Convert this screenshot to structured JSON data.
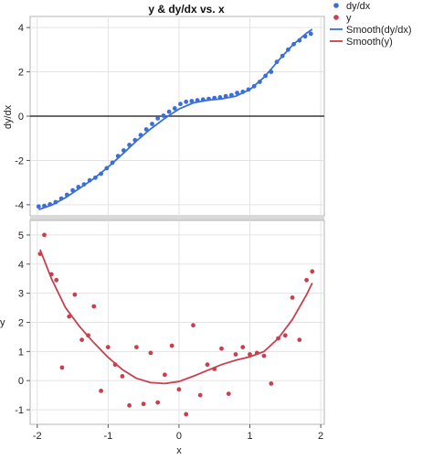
{
  "colors": {
    "dydx": "#3a6fd8",
    "y": "#c8404e",
    "smooth_dydx": "#3a6fd8",
    "smooth_y": "#c8404e",
    "grid": "#e3e3e3",
    "divider": "#d9d9d9"
  },
  "chart_data": [
    {
      "type": "scatter",
      "title": "y & dy/dx vs. x",
      "xlabel": "",
      "ylabel": "dy/dx",
      "xlim": [
        -2.1,
        2.05
      ],
      "ylim": [
        -4.5,
        4.5
      ],
      "yticks": [
        -4,
        -2,
        0,
        2,
        4
      ],
      "grid": true,
      "reference_line_y": 0,
      "series": [
        {
          "name": "dy/dx",
          "mode": "markers",
          "x": [
            -1.98,
            -1.9,
            -1.82,
            -1.74,
            -1.66,
            -1.58,
            -1.5,
            -1.42,
            -1.34,
            -1.26,
            -1.18,
            -1.1,
            -1.02,
            -0.94,
            -0.86,
            -0.78,
            -0.7,
            -0.62,
            -0.54,
            -0.46,
            -0.38,
            -0.3,
            -0.22,
            -0.14,
            -0.06,
            0.02,
            0.1,
            0.18,
            0.26,
            0.34,
            0.42,
            0.5,
            0.58,
            0.66,
            0.74,
            0.82,
            0.9,
            0.98,
            1.06,
            1.14,
            1.22,
            1.3,
            1.38,
            1.46,
            1.54,
            1.62,
            1.7,
            1.78,
            1.86
          ],
          "y": [
            -4.08,
            -4.05,
            -3.98,
            -3.88,
            -3.72,
            -3.55,
            -3.35,
            -3.2,
            -3.08,
            -2.9,
            -2.78,
            -2.6,
            -2.35,
            -2.1,
            -1.8,
            -1.55,
            -1.3,
            -1.08,
            -0.85,
            -0.6,
            -0.35,
            -0.1,
            0.02,
            0.2,
            0.35,
            0.55,
            0.65,
            0.68,
            0.72,
            0.75,
            0.78,
            0.82,
            0.85,
            0.9,
            0.95,
            1.05,
            1.1,
            1.2,
            1.35,
            1.55,
            1.82,
            2.0,
            2.45,
            2.72,
            3.0,
            3.25,
            3.42,
            3.6,
            3.72
          ]
        },
        {
          "name": "Smooth(dy/dx)",
          "mode": "line",
          "x": [
            -1.98,
            -1.8,
            -1.6,
            -1.4,
            -1.2,
            -1.0,
            -0.8,
            -0.6,
            -0.4,
            -0.2,
            0.0,
            0.2,
            0.4,
            0.6,
            0.8,
            1.0,
            1.2,
            1.4,
            1.6,
            1.8,
            1.88
          ],
          "y": [
            -4.22,
            -4.02,
            -3.68,
            -3.25,
            -2.82,
            -2.3,
            -1.72,
            -1.12,
            -0.58,
            -0.1,
            0.32,
            0.6,
            0.72,
            0.78,
            0.9,
            1.2,
            1.75,
            2.5,
            3.2,
            3.75,
            3.92
          ]
        }
      ]
    },
    {
      "type": "scatter",
      "title": "",
      "xlabel": "x",
      "ylabel": "y",
      "xlim": [
        -2.1,
        2.05
      ],
      "ylim": [
        -1.5,
        5.5
      ],
      "xticks": [
        -2,
        -1,
        0,
        1,
        2
      ],
      "yticks": [
        -1,
        0,
        1,
        2,
        3,
        4,
        5
      ],
      "grid": true,
      "series": [
        {
          "name": "y",
          "mode": "markers",
          "x": [
            -1.96,
            -1.9,
            -1.8,
            -1.73,
            -1.65,
            -1.55,
            -1.47,
            -1.37,
            -1.28,
            -1.2,
            -1.1,
            -1.0,
            -0.9,
            -0.8,
            -0.7,
            -0.6,
            -0.5,
            -0.4,
            -0.3,
            -0.2,
            -0.1,
            0.0,
            0.1,
            0.2,
            0.3,
            0.4,
            0.5,
            0.6,
            0.7,
            0.8,
            0.9,
            1.0,
            1.1,
            1.2,
            1.3,
            1.4,
            1.5,
            1.6,
            1.7,
            1.8,
            1.88
          ],
          "y": [
            4.35,
            5.0,
            3.65,
            3.45,
            0.45,
            2.2,
            2.95,
            1.4,
            1.55,
            2.55,
            -0.35,
            1.15,
            0.55,
            0.15,
            -0.85,
            1.15,
            -0.8,
            0.95,
            -0.75,
            0.2,
            1.2,
            -0.3,
            -1.15,
            1.9,
            -0.5,
            0.55,
            0.4,
            1.1,
            -0.45,
            0.9,
            1.15,
            0.9,
            0.95,
            0.85,
            -0.1,
            1.45,
            1.55,
            2.85,
            1.4,
            3.45,
            3.75
          ]
        },
        {
          "name": "Smooth(y)",
          "mode": "line",
          "x": [
            -1.96,
            -1.8,
            -1.6,
            -1.4,
            -1.2,
            -1.0,
            -0.8,
            -0.6,
            -0.4,
            -0.2,
            0.0,
            0.2,
            0.4,
            0.6,
            0.8,
            1.0,
            1.2,
            1.4,
            1.6,
            1.8,
            1.88
          ],
          "y": [
            4.5,
            3.5,
            2.5,
            1.85,
            1.3,
            0.8,
            0.38,
            0.08,
            -0.07,
            -0.1,
            -0.03,
            0.15,
            0.35,
            0.55,
            0.7,
            0.82,
            1.0,
            1.45,
            2.1,
            2.95,
            3.35
          ]
        }
      ]
    }
  ],
  "legend": [
    {
      "label": "dy/dx",
      "kind": "marker",
      "color": "#3a6fd8"
    },
    {
      "label": "y",
      "kind": "marker",
      "color": "#c8404e"
    },
    {
      "label": "Smooth(dy/dx)",
      "kind": "line",
      "color": "#3a6fd8"
    },
    {
      "label": "Smooth(y)",
      "kind": "line",
      "color": "#c8404e"
    }
  ]
}
